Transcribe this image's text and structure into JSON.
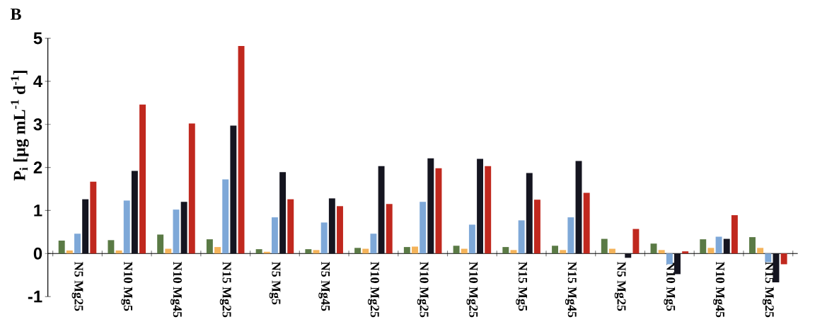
{
  "chart_data": {
    "type": "bar",
    "title": "B",
    "ylabel": "P$_{i}$ [µg mL$^{-1}$ d$^{-1}$]",
    "categories": [
      "N5 Mg25",
      "N10 Mg5",
      "N10 Mg45",
      "N15 Mg25",
      "N5 Mg5",
      "N5 Mg45",
      "N10 Mg25",
      "N10 Mg25",
      "N10 Mg25",
      "N15 Mg5",
      "N15 Mg45",
      "N5 Mg25",
      "N10 Mg5",
      "N10 Mg45",
      "N15 Mg25"
    ],
    "series": [
      {
        "color": "#5a7a45",
        "values": [
          0.3,
          0.31,
          0.44,
          0.33,
          0.1,
          0.1,
          0.13,
          0.15,
          0.18,
          0.15,
          0.18,
          0.34,
          0.23,
          0.33,
          0.38
        ]
      },
      {
        "color": "#f4b35a",
        "values": [
          0.07,
          0.07,
          0.11,
          0.15,
          0.04,
          0.08,
          0.11,
          0.16,
          0.11,
          0.08,
          0.08,
          0.11,
          0.08,
          0.13,
          0.13
        ]
      },
      {
        "color": "#7ea8d8",
        "values": [
          0.46,
          1.23,
          1.02,
          1.72,
          0.84,
          0.72,
          0.46,
          1.2,
          0.67,
          0.77,
          0.84,
          0,
          -0.25,
          0.39,
          -0.2
        ]
      },
      {
        "color": "#151520",
        "values": [
          1.26,
          1.92,
          1.2,
          2.97,
          1.89,
          1.28,
          2.03,
          2.21,
          2.2,
          1.87,
          2.15,
          -0.1,
          -0.48,
          0.34,
          -0.67
        ]
      },
      {
        "color": "#c0281e",
        "values": [
          1.67,
          3.46,
          3.02,
          4.82,
          1.26,
          1.1,
          1.15,
          1.98,
          2.03,
          1.25,
          1.41,
          0.57,
          0.05,
          0.89,
          -0.25
        ]
      }
    ],
    "ylim": [
      -1,
      5
    ],
    "yticks": [
      -1,
      0,
      1,
      2,
      3,
      4,
      5
    ],
    "grid": false,
    "legend": false
  }
}
